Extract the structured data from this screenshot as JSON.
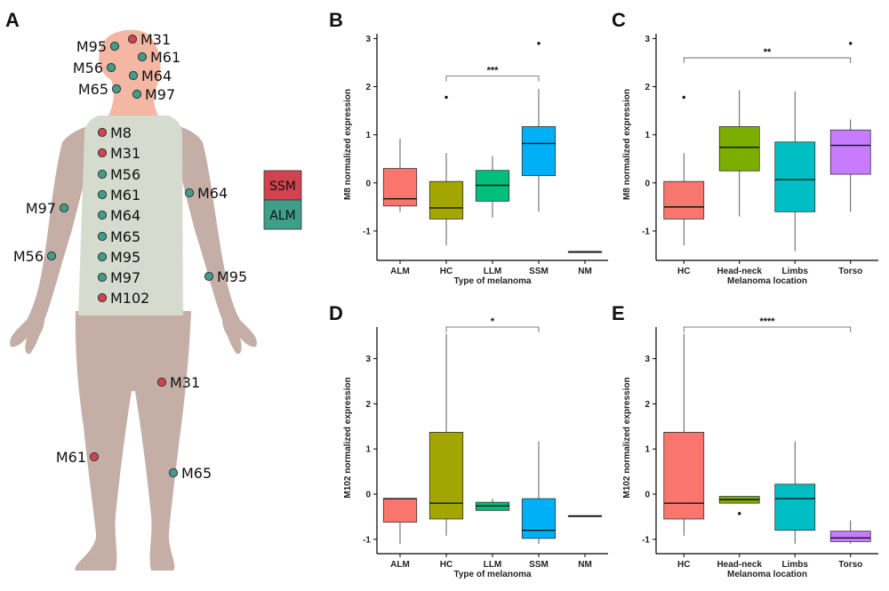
{
  "panels": [
    "A",
    "B",
    "C",
    "D",
    "E"
  ],
  "legend": [
    {
      "label": "SSM",
      "color": "#d2434f"
    },
    {
      "label": "ALM",
      "color": "#3f9e8a"
    }
  ],
  "body_markers": [
    {
      "label": "M31",
      "type": "SSM",
      "region": "head"
    },
    {
      "label": "M95",
      "type": "ALM",
      "region": "head"
    },
    {
      "label": "M61",
      "type": "ALM",
      "region": "head"
    },
    {
      "label": "M56",
      "type": "ALM",
      "region": "head"
    },
    {
      "label": "M64",
      "type": "ALM",
      "region": "head"
    },
    {
      "label": "M65",
      "type": "ALM",
      "region": "head"
    },
    {
      "label": "M97",
      "type": "ALM",
      "region": "head"
    },
    {
      "label": "M8",
      "type": "SSM",
      "region": "torso"
    },
    {
      "label": "M31",
      "type": "SSM",
      "region": "torso"
    },
    {
      "label": "M56",
      "type": "ALM",
      "region": "torso"
    },
    {
      "label": "M61",
      "type": "ALM",
      "region": "torso"
    },
    {
      "label": "M64",
      "type": "ALM",
      "region": "torso"
    },
    {
      "label": "M65",
      "type": "ALM",
      "region": "torso"
    },
    {
      "label": "M95",
      "type": "ALM",
      "region": "torso"
    },
    {
      "label": "M97",
      "type": "ALM",
      "region": "torso"
    },
    {
      "label": "M102",
      "type": "SSM",
      "region": "torso"
    },
    {
      "label": "M64",
      "type": "ALM",
      "region": "right-arm"
    },
    {
      "label": "M97",
      "type": "ALM",
      "region": "left-arm"
    },
    {
      "label": "M56",
      "type": "ALM",
      "region": "left-arm"
    },
    {
      "label": "M95",
      "type": "ALM",
      "region": "right-arm"
    },
    {
      "label": "M31",
      "type": "SSM",
      "region": "right-leg"
    },
    {
      "label": "M61",
      "type": "SSM",
      "region": "left-leg"
    },
    {
      "label": "M65",
      "type": "ALM",
      "region": "right-leg"
    }
  ],
  "chart_data": [
    {
      "panel": "B",
      "type": "box",
      "xlabel": "Type of melanoma",
      "ylabel": "M8 normalized expression",
      "ylim": [
        -1.5,
        3.1
      ],
      "yticks": [
        -1,
        0,
        1,
        2,
        3
      ],
      "categories": [
        "ALM",
        "HC",
        "LLM",
        "SSM",
        "NM"
      ],
      "boxes": [
        {
          "category": "ALM",
          "color": "#f8766d",
          "min": -0.6,
          "q1": -0.48,
          "median": -0.33,
          "q3": 0.3,
          "max": 0.92,
          "outliers": []
        },
        {
          "category": "HC",
          "color": "#a3a500",
          "min": -1.3,
          "q1": -0.75,
          "median": -0.52,
          "q3": 0.03,
          "max": 0.62,
          "outliers": [
            1.78
          ]
        },
        {
          "category": "LLM",
          "color": "#00bf7d",
          "min": -0.72,
          "q1": -0.38,
          "median": -0.05,
          "q3": 0.26,
          "max": 0.56,
          "outliers": []
        },
        {
          "category": "SSM",
          "color": "#00b0f6",
          "min": -0.6,
          "q1": 0.15,
          "median": 0.82,
          "q3": 1.17,
          "max": 1.95,
          "outliers": [
            2.9
          ]
        },
        {
          "category": "NM",
          "color": "#e76bf3",
          "min": -1.43,
          "q1": -1.43,
          "median": -1.43,
          "q3": -1.43,
          "max": -1.43,
          "outliers": []
        }
      ],
      "significance": [
        {
          "from": "HC",
          "to": "SSM",
          "label": "***",
          "y": 2.22
        }
      ]
    },
    {
      "panel": "C",
      "type": "box",
      "xlabel": "Melanoma location",
      "ylabel": "M8 normalized expression",
      "ylim": [
        -1.5,
        3.1
      ],
      "yticks": [
        -1,
        0,
        1,
        2,
        3
      ],
      "categories": [
        "HC",
        "Head-neck",
        "Limbs",
        "Torso"
      ],
      "boxes": [
        {
          "category": "HC",
          "color": "#f8766d",
          "min": -1.3,
          "q1": -0.75,
          "median": -0.5,
          "q3": 0.03,
          "max": 0.62,
          "outliers": [
            1.78
          ]
        },
        {
          "category": "Head-neck",
          "color": "#7cae00",
          "min": -0.7,
          "q1": 0.25,
          "median": 0.74,
          "q3": 1.17,
          "max": 1.93,
          "outliers": []
        },
        {
          "category": "Limbs",
          "color": "#00bfc4",
          "min": -1.42,
          "q1": -0.6,
          "median": 0.07,
          "q3": 0.85,
          "max": 1.9,
          "outliers": []
        },
        {
          "category": "Torso",
          "color": "#c77cff",
          "min": -0.6,
          "q1": 0.18,
          "median": 0.78,
          "q3": 1.1,
          "max": 1.32,
          "outliers": [
            2.9
          ]
        }
      ],
      "significance": [
        {
          "from": "HC",
          "to": "Torso",
          "label": "**",
          "y": 2.6
        }
      ]
    },
    {
      "panel": "D",
      "type": "box",
      "xlabel": "Type of melanoma",
      "ylabel": "M102 normalized expression",
      "ylim": [
        -1.2,
        3.7
      ],
      "yticks": [
        -1,
        0,
        1,
        2,
        3
      ],
      "categories": [
        "ALM",
        "HC",
        "LLM",
        "SSM",
        "NM"
      ],
      "boxes": [
        {
          "category": "ALM",
          "color": "#f8766d",
          "min": -1.1,
          "q1": -0.62,
          "median": -0.1,
          "q3": -0.1,
          "max": -0.1,
          "outliers": []
        },
        {
          "category": "HC",
          "color": "#a3a500",
          "min": -0.92,
          "q1": -0.55,
          "median": -0.2,
          "q3": 1.37,
          "max": 3.55,
          "outliers": []
        },
        {
          "category": "LLM",
          "color": "#00bf7d",
          "min": -0.36,
          "q1": -0.36,
          "median": -0.26,
          "q3": -0.18,
          "max": -0.1,
          "outliers": []
        },
        {
          "category": "SSM",
          "color": "#00b0f6",
          "min": -1.1,
          "q1": -0.98,
          "median": -0.8,
          "q3": -0.1,
          "max": 1.17,
          "outliers": []
        },
        {
          "category": "NM",
          "color": "#e76bf3",
          "min": -0.48,
          "q1": -0.48,
          "median": -0.48,
          "q3": -0.48,
          "max": -0.48,
          "outliers": []
        }
      ],
      "significance": [
        {
          "from": "HC",
          "to": "SSM",
          "label": "*",
          "y": 3.7
        }
      ]
    },
    {
      "panel": "E",
      "type": "box",
      "xlabel": "Melanoma location",
      "ylabel": "M102 normalized expression",
      "ylim": [
        -1.2,
        3.7
      ],
      "yticks": [
        -1,
        0,
        1,
        2,
        3
      ],
      "categories": [
        "HC",
        "Head-neck",
        "Limbs",
        "Torso"
      ],
      "boxes": [
        {
          "category": "HC",
          "color": "#f8766d",
          "min": -0.92,
          "q1": -0.55,
          "median": -0.2,
          "q3": 1.37,
          "max": 3.55,
          "outliers": []
        },
        {
          "category": "Head-neck",
          "color": "#7cae00",
          "min": -0.2,
          "q1": -0.2,
          "median": -0.12,
          "q3": -0.05,
          "max": -0.05,
          "outliers": [
            -0.43
          ]
        },
        {
          "category": "Limbs",
          "color": "#00bfc4",
          "min": -1.1,
          "q1": -0.8,
          "median": -0.1,
          "q3": 0.22,
          "max": 1.17,
          "outliers": []
        },
        {
          "category": "Torso",
          "color": "#c77cff",
          "min": -1.1,
          "q1": -1.05,
          "median": -0.97,
          "q3": -0.82,
          "max": -0.58,
          "outliers": []
        }
      ],
      "significance": [
        {
          "from": "HC",
          "to": "Torso",
          "label": "****",
          "y": 3.7
        }
      ]
    }
  ]
}
